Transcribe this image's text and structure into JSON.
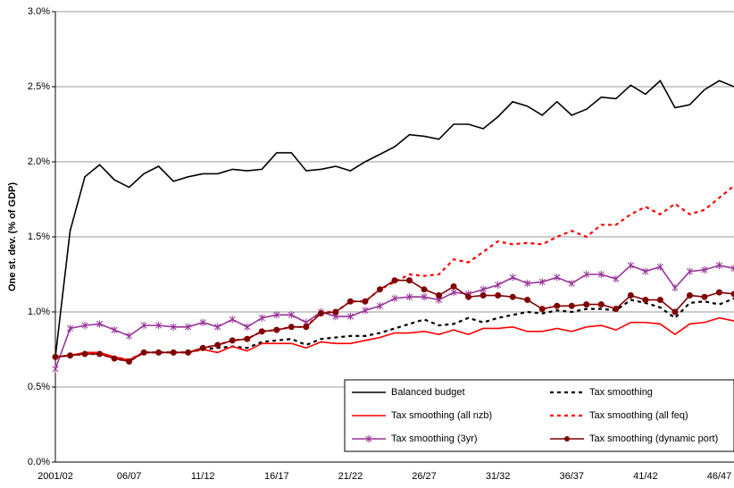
{
  "chart_data": {
    "type": "line",
    "y_label": "One st. dev. (% of GDP)",
    "categories": [
      "2001/02",
      null,
      null,
      null,
      null,
      "06/07",
      null,
      null,
      null,
      null,
      "11/12",
      null,
      null,
      null,
      null,
      "16/17",
      null,
      null,
      null,
      null,
      "21/22",
      null,
      null,
      null,
      null,
      "26/27",
      null,
      null,
      null,
      null,
      "31/32",
      null,
      null,
      null,
      null,
      "36/37",
      null,
      null,
      null,
      null,
      "41/42",
      null,
      null,
      null,
      null,
      "46/47",
      null
    ],
    "ylim": [
      0,
      3
    ],
    "yticks": [
      {
        "value": 0,
        "label": "0.0%"
      },
      {
        "value": 0.5,
        "label": "0.5%"
      },
      {
        "value": 1,
        "label": "1.0%"
      },
      {
        "value": 1.5,
        "label": "1.5%"
      },
      {
        "value": 2,
        "label": "2.0%"
      },
      {
        "value": 2.5,
        "label": "2.5%"
      },
      {
        "value": 3,
        "label": "3.0%"
      }
    ],
    "grid": true,
    "legend": "lower-right",
    "series": [
      {
        "name": "Balanced budget",
        "color": "#000000",
        "dash": false,
        "marker": "none",
        "values": [
          0.7,
          1.54,
          1.9,
          1.98,
          1.88,
          1.83,
          1.92,
          1.97,
          1.87,
          1.9,
          1.92,
          1.92,
          1.95,
          1.94,
          1.95,
          2.06,
          2.06,
          1.94,
          1.95,
          1.97,
          1.94,
          2.0,
          2.05,
          2.1,
          2.18,
          2.17,
          2.15,
          2.25,
          2.25,
          2.22,
          2.3,
          2.4,
          2.37,
          2.31,
          2.4,
          2.31,
          2.35,
          2.43,
          2.42,
          2.51,
          2.45,
          2.54,
          2.36,
          2.38,
          2.48,
          2.54,
          2.5
        ]
      },
      {
        "name": "Tax smoothing",
        "color": "#000000",
        "dash": true,
        "marker": "none",
        "values": [
          0.7,
          0.71,
          0.72,
          0.72,
          0.7,
          0.68,
          0.73,
          0.73,
          0.73,
          0.73,
          0.75,
          0.76,
          0.77,
          0.76,
          0.8,
          0.81,
          0.82,
          0.78,
          0.82,
          0.83,
          0.84,
          0.84,
          0.86,
          0.89,
          0.92,
          0.95,
          0.91,
          0.92,
          0.96,
          0.93,
          0.96,
          0.98,
          1.0,
          0.99,
          1.01,
          1.0,
          1.02,
          1.02,
          1.01,
          1.08,
          1.06,
          1.03,
          0.96,
          1.06,
          1.07,
          1.05,
          1.09
        ]
      },
      {
        "name": "Tax smoothing (all nzb)",
        "color": "#ff0000",
        "dash": false,
        "marker": "none",
        "values": [
          0.7,
          0.71,
          0.73,
          0.73,
          0.7,
          0.68,
          0.73,
          0.73,
          0.73,
          0.73,
          0.75,
          0.73,
          0.77,
          0.74,
          0.79,
          0.79,
          0.79,
          0.76,
          0.8,
          0.79,
          0.79,
          0.81,
          0.83,
          0.86,
          0.86,
          0.87,
          0.85,
          0.88,
          0.85,
          0.89,
          0.89,
          0.9,
          0.87,
          0.87,
          0.89,
          0.87,
          0.9,
          0.91,
          0.88,
          0.93,
          0.93,
          0.92,
          0.85,
          0.92,
          0.93,
          0.96,
          0.94
        ]
      },
      {
        "name": "Tax smoothing (all feq)",
        "color": "#ff0000",
        "dash": true,
        "marker": "none",
        "values": [
          0.7,
          0.71,
          0.72,
          0.72,
          0.69,
          0.67,
          0.73,
          0.73,
          0.73,
          0.73,
          0.76,
          0.78,
          0.81,
          0.82,
          0.87,
          0.88,
          0.9,
          0.9,
          1.0,
          1.0,
          1.07,
          1.07,
          1.15,
          1.2,
          1.25,
          1.24,
          1.25,
          1.35,
          1.33,
          1.4,
          1.47,
          1.45,
          1.46,
          1.45,
          1.5,
          1.54,
          1.5,
          1.58,
          1.58,
          1.65,
          1.7,
          1.65,
          1.72,
          1.65,
          1.68,
          1.76,
          1.84
        ]
      },
      {
        "name": "Tax smoothing (3yr)",
        "color": "#993399",
        "dash": false,
        "marker": "star",
        "values": [
          0.62,
          0.89,
          0.91,
          0.92,
          0.88,
          0.84,
          0.91,
          0.91,
          0.9,
          0.9,
          0.93,
          0.9,
          0.95,
          0.9,
          0.96,
          0.98,
          0.98,
          0.93,
          1.0,
          0.97,
          0.97,
          1.01,
          1.04,
          1.09,
          1.1,
          1.1,
          1.08,
          1.13,
          1.12,
          1.15,
          1.18,
          1.23,
          1.19,
          1.2,
          1.23,
          1.19,
          1.25,
          1.25,
          1.22,
          1.31,
          1.27,
          1.3,
          1.16,
          1.27,
          1.28,
          1.31,
          1.29
        ]
      },
      {
        "name": "Tax smoothing (dynamic port)",
        "color": "#800000",
        "dash": false,
        "marker": "circle",
        "values": [
          0.7,
          0.71,
          0.72,
          0.72,
          0.69,
          0.67,
          0.73,
          0.73,
          0.73,
          0.73,
          0.76,
          0.78,
          0.81,
          0.82,
          0.87,
          0.88,
          0.9,
          0.9,
          0.99,
          1.0,
          1.07,
          1.07,
          1.15,
          1.21,
          1.21,
          1.15,
          1.11,
          1.17,
          1.1,
          1.11,
          1.11,
          1.1,
          1.08,
          1.02,
          1.04,
          1.04,
          1.05,
          1.05,
          1.02,
          1.11,
          1.08,
          1.08,
          1.0,
          1.11,
          1.1,
          1.13,
          1.12
        ]
      }
    ]
  }
}
